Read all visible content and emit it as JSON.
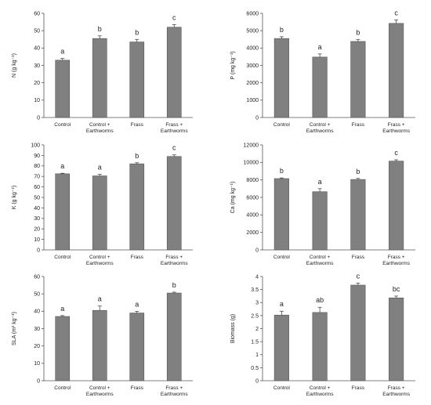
{
  "chart_data": [
    {
      "type": "bar",
      "ylabel": "N (g kg⁻¹)",
      "ylim": [
        0,
        60
      ],
      "yticks": [
        0,
        10,
        20,
        30,
        40,
        50,
        60
      ],
      "categories": [
        "Control",
        "Control + Earthworms",
        "Frass",
        "Frass + Earthworms"
      ],
      "values": [
        33,
        45.5,
        43.5,
        52
      ],
      "errors": [
        1.0,
        1.5,
        1.5,
        1.5
      ],
      "letters": [
        "a",
        "b",
        "b",
        "c"
      ],
      "bar_color": "#808080"
    },
    {
      "type": "bar",
      "ylabel": "P (mg kg⁻¹)",
      "ylim": [
        0,
        6000
      ],
      "yticks": [
        0,
        1000,
        2000,
        3000,
        4000,
        5000,
        6000
      ],
      "categories": [
        "Control",
        "Control + Earthworms",
        "Frass",
        "Frass + Earthworms"
      ],
      "values": [
        4550,
        3480,
        4380,
        5420
      ],
      "errors": [
        100,
        180,
        120,
        200
      ],
      "letters": [
        "b",
        "a",
        "b",
        "c"
      ],
      "bar_color": "#808080"
    },
    {
      "type": "bar",
      "ylabel": "K (g kg⁻¹)",
      "ylim": [
        0,
        100
      ],
      "yticks": [
        0,
        10,
        20,
        30,
        40,
        50,
        60,
        70,
        80,
        90,
        100
      ],
      "categories": [
        "Control",
        "Control + Earthworms",
        "Frass",
        "Frass + Earthworms"
      ],
      "values": [
        72.5,
        70.5,
        82,
        89
      ],
      "errors": [
        0.5,
        1.5,
        1.0,
        1.5
      ],
      "letters": [
        "a",
        "a",
        "b",
        "c"
      ],
      "bar_color": "#808080"
    },
    {
      "type": "bar",
      "ylabel": "Ca (mg kg⁻¹)",
      "ylim": [
        0,
        12000
      ],
      "yticks": [
        0,
        2000,
        4000,
        6000,
        8000,
        10000,
        12000
      ],
      "categories": [
        "Control",
        "Control + Earthworms",
        "Frass",
        "Frass + Earthworms"
      ],
      "values": [
        8150,
        6650,
        8050,
        10150
      ],
      "errors": [
        80,
        350,
        120,
        150
      ],
      "letters": [
        "b",
        "a",
        "b",
        "c"
      ],
      "bar_color": "#808080"
    },
    {
      "type": "bar",
      "ylabel": "SLA (m² kg⁻¹)",
      "ylim": [
        0,
        60
      ],
      "yticks": [
        0,
        10,
        20,
        30,
        40,
        50,
        60
      ],
      "categories": [
        "Control",
        "Control + Earthworms",
        "Frass",
        "Frass + Earthworms"
      ],
      "values": [
        37,
        40.5,
        39,
        50.5
      ],
      "errors": [
        0.5,
        2.5,
        1.0,
        0.5
      ],
      "letters": [
        "a",
        "a",
        "a",
        "b"
      ],
      "bar_color": "#808080"
    },
    {
      "type": "bar",
      "ylabel": "Biomass (g)",
      "ylim": [
        0,
        4
      ],
      "yticks": [
        0,
        0.5,
        1,
        1.5,
        2,
        2.5,
        3,
        3.5,
        4
      ],
      "categories": [
        "Control",
        "Control + Earthworms",
        "Frass",
        "Frass + Earthworms"
      ],
      "values": [
        2.52,
        2.62,
        3.67,
        3.18
      ],
      "errors": [
        0.15,
        0.2,
        0.08,
        0.07
      ],
      "letters": [
        "a",
        "ab",
        "c",
        "bc"
      ],
      "bar_color": "#808080"
    }
  ]
}
